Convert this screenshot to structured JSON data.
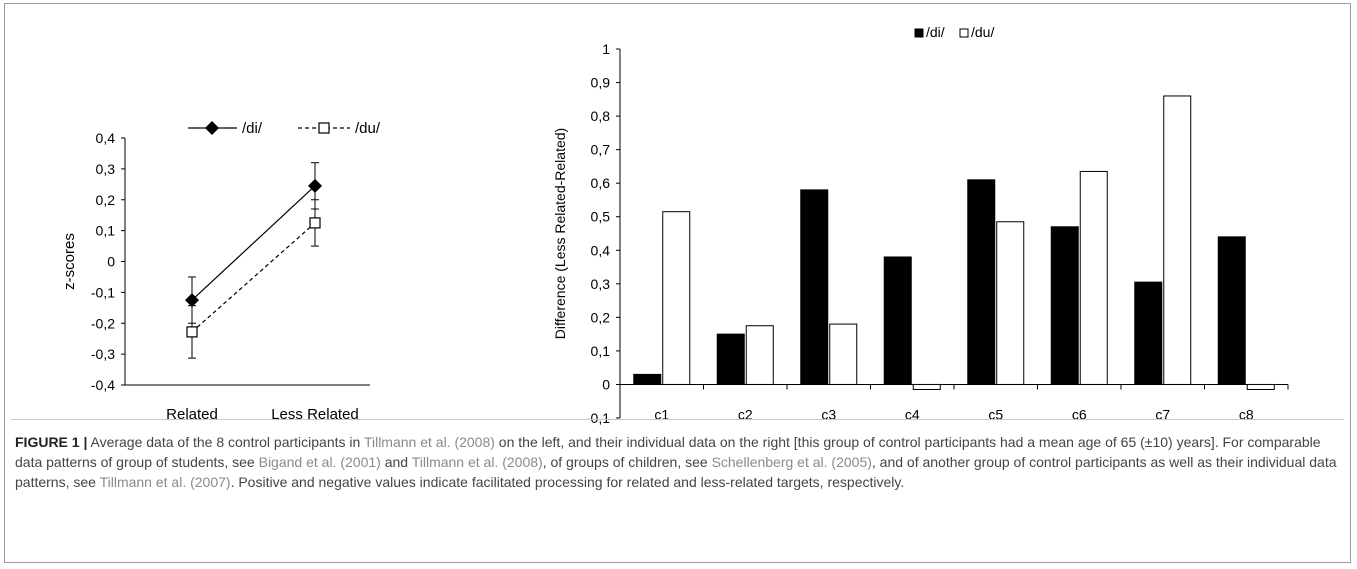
{
  "chart_data": [
    {
      "type": "line",
      "ylabel": "z-scores",
      "xlabel": "",
      "ylim": [
        -0.4,
        0.4
      ],
      "ytick_labels": [
        "-0,4",
        "-0,3",
        "-0,2",
        "-0,1",
        "0",
        "0,1",
        "0,2",
        "0,3",
        "0,4"
      ],
      "categories": [
        "Related",
        "Less Related"
      ],
      "legend": "top",
      "grid": false,
      "series": [
        {
          "name": "/di/",
          "values": [
            -0.125,
            0.245
          ],
          "errors": [
            0.075,
            0.075
          ],
          "marker": "filled-diamond",
          "line": "solid",
          "color": "#000000"
        },
        {
          "name": "/du/",
          "values": [
            -0.228,
            0.125
          ],
          "errors": [
            0.085,
            0.075
          ],
          "marker": "open-square",
          "line": "dashed",
          "color": "#000000"
        }
      ]
    },
    {
      "type": "bar",
      "ylabel": "Difference (Less Related-Related)",
      "xlabel": "",
      "ylim": [
        -0.1,
        1
      ],
      "ytick_labels": [
        "-0,1",
        "0",
        "0,1",
        "0,2",
        "0,3",
        "0,4",
        "0,5",
        "0,6",
        "0,7",
        "0,8",
        "0,9",
        "1"
      ],
      "categories": [
        "c1",
        "c2",
        "c3",
        "c4",
        "c5",
        "c6",
        "c7",
        "c8"
      ],
      "legend": "top",
      "grid": false,
      "series": [
        {
          "name": "/di/",
          "values": [
            0.03,
            0.15,
            0.58,
            0.38,
            0.61,
            0.47,
            0.305,
            0.44
          ],
          "color": "#000000"
        },
        {
          "name": "/du/",
          "values": [
            0.515,
            0.175,
            0.18,
            -0.015,
            0.485,
            0.635,
            0.86,
            -0.015
          ],
          "color": "#ffffff"
        }
      ]
    }
  ],
  "caption": {
    "label": "FIGURE 1 |",
    "t1": " Average data of the 8 control participants in ",
    "r1": "Tillmann et al. (2008)",
    "t2": " on the left, and their individual data on the right [this group of control participants had a mean age of 65 (±10) years]. For comparable data patterns of group of students, see ",
    "r2": "Bigand et al. (2001)",
    "t3": " and ",
    "r3": "Tillmann et al. (2008)",
    "t4": ", of groups of children, see ",
    "r4": "Schellenberg et al. (2005)",
    "t5": ", and of another group of control participants as well as their individual data patterns, see ",
    "r5": "Tillmann et al. (2007)",
    "t6": ". Positive and negative values indicate facilitated processing for related and less-related targets, respectively."
  }
}
